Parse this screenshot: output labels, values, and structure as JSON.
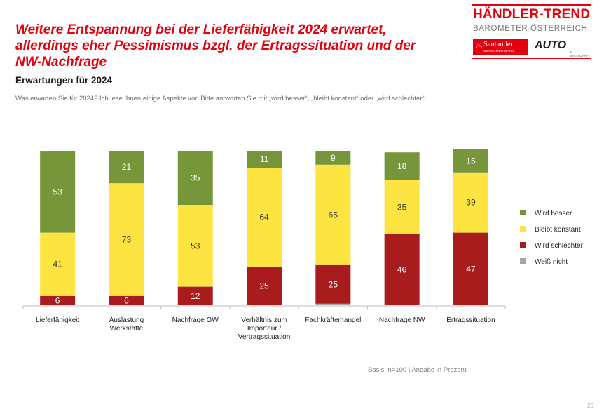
{
  "header": {
    "title_lines": [
      "Weitere Entspannung bei der Lieferfähigkeit 2024 erwartet,",
      "allerdings eher Pessimismus bzgl. der Ertragssituation und der",
      "NW-Nachfrage"
    ],
    "subtitle": "Erwartungen für 2024",
    "question": "Was erwarten Sie für 2024? Ich lese Ihnen einige Aspekte vor. Bitte antworten Sie mit „wird besser“, „bleibt konstant“ oder „wird schlechter“."
  },
  "logo": {
    "name": "HÄNDLER-TREND",
    "sub": "BAROMETER ÖSTERREICH",
    "santander": "Santander",
    "santander_sub": "CONSUMER BANK",
    "auto": "AUTO",
    "auto_sub": "& WIRTSCHAFT"
  },
  "colors": {
    "wird_besser": "#77963a",
    "bleibt_konstant": "#fee440",
    "wird_schlechter": "#a81c1e",
    "weiss_nicht": "#a6a6a6",
    "brand_red": "#e3000f"
  },
  "chart_data": {
    "type": "bar",
    "stacked": true,
    "categories": [
      [
        "Lieferfähigkeit"
      ],
      [
        "Auslastung",
        "Werkstätte"
      ],
      [
        "Nachfrage GW"
      ],
      [
        "Verhältnis zum",
        "Importeur /",
        "Vertragssituation"
      ],
      [
        "Fachkräftemangel"
      ],
      [
        "Nachfrage NW"
      ],
      [
        "Ertragssituation"
      ]
    ],
    "series": [
      {
        "name": "Weiß nicht",
        "values": [
          0,
          0,
          0,
          0,
          1,
          0,
          0
        ]
      },
      {
        "name": "Wird schlechter",
        "values": [
          6,
          6,
          12,
          25,
          25,
          46,
          47
        ]
      },
      {
        "name": "Bleibt konstant",
        "values": [
          41,
          73,
          53,
          64,
          65,
          35,
          39
        ]
      },
      {
        "name": "Wird besser",
        "values": [
          53,
          21,
          35,
          11,
          9,
          18,
          15
        ]
      }
    ],
    "legend_order": [
      "Wird besser",
      "Bleibt konstant",
      "Wird schlechter",
      "Weiß nicht"
    ],
    "legend_position": "right",
    "ylim": [
      0,
      100
    ],
    "grid": false
  },
  "footnote": "Basis: n=100 | Angabe in Prozent",
  "page_number": "20"
}
